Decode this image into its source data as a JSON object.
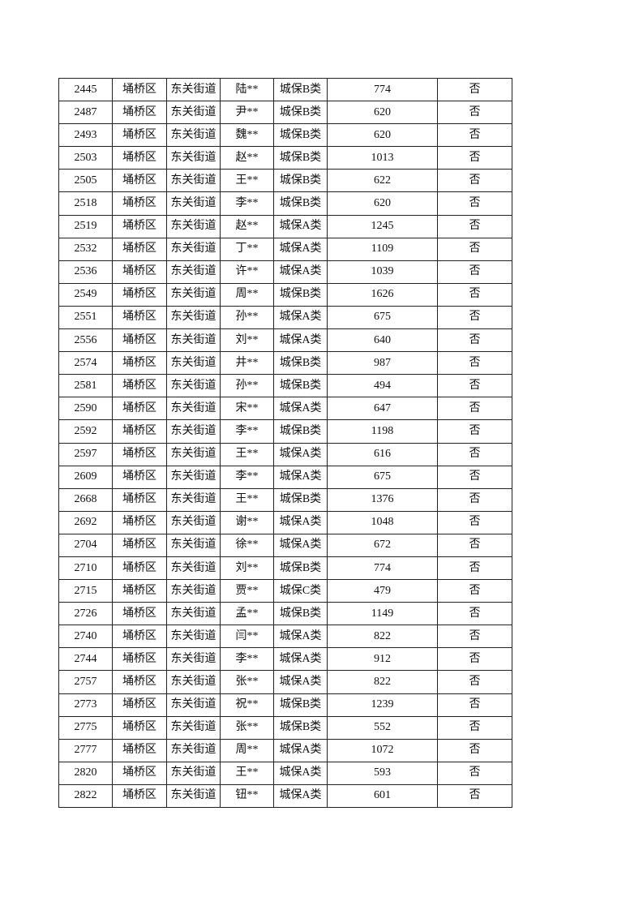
{
  "table": {
    "rows": [
      [
        "2445",
        "埇桥区",
        "东关街道",
        "陆**",
        "城保B类",
        "774",
        "否"
      ],
      [
        "2487",
        "埇桥区",
        "东关街道",
        "尹**",
        "城保B类",
        "620",
        "否"
      ],
      [
        "2493",
        "埇桥区",
        "东关街道",
        "魏**",
        "城保B类",
        "620",
        "否"
      ],
      [
        "2503",
        "埇桥区",
        "东关街道",
        "赵**",
        "城保B类",
        "1013",
        "否"
      ],
      [
        "2505",
        "埇桥区",
        "东关街道",
        "王**",
        "城保B类",
        "622",
        "否"
      ],
      [
        "2518",
        "埇桥区",
        "东关街道",
        "李**",
        "城保B类",
        "620",
        "否"
      ],
      [
        "2519",
        "埇桥区",
        "东关街道",
        "赵**",
        "城保A类",
        "1245",
        "否"
      ],
      [
        "2532",
        "埇桥区",
        "东关街道",
        "丁**",
        "城保A类",
        "1109",
        "否"
      ],
      [
        "2536",
        "埇桥区",
        "东关街道",
        "许**",
        "城保A类",
        "1039",
        "否"
      ],
      [
        "2549",
        "埇桥区",
        "东关街道",
        "周**",
        "城保B类",
        "1626",
        "否"
      ],
      [
        "2551",
        "埇桥区",
        "东关街道",
        "孙**",
        "城保A类",
        "675",
        "否"
      ],
      [
        "2556",
        "埇桥区",
        "东关街道",
        "刘**",
        "城保A类",
        "640",
        "否"
      ],
      [
        "2574",
        "埇桥区",
        "东关街道",
        "井**",
        "城保B类",
        "987",
        "否"
      ],
      [
        "2581",
        "埇桥区",
        "东关街道",
        "孙**",
        "城保B类",
        "494",
        "否"
      ],
      [
        "2590",
        "埇桥区",
        "东关街道",
        "宋**",
        "城保A类",
        "647",
        "否"
      ],
      [
        "2592",
        "埇桥区",
        "东关街道",
        "李**",
        "城保B类",
        "1198",
        "否"
      ],
      [
        "2597",
        "埇桥区",
        "东关街道",
        "王**",
        "城保A类",
        "616",
        "否"
      ],
      [
        "2609",
        "埇桥区",
        "东关街道",
        "李**",
        "城保A类",
        "675",
        "否"
      ],
      [
        "2668",
        "埇桥区",
        "东关街道",
        "王**",
        "城保B类",
        "1376",
        "否"
      ],
      [
        "2692",
        "埇桥区",
        "东关街道",
        "谢**",
        "城保A类",
        "1048",
        "否"
      ],
      [
        "2704",
        "埇桥区",
        "东关街道",
        "徐**",
        "城保A类",
        "672",
        "否"
      ],
      [
        "2710",
        "埇桥区",
        "东关街道",
        "刘**",
        "城保B类",
        "774",
        "否"
      ],
      [
        "2715",
        "埇桥区",
        "东关街道",
        "贾**",
        "城保C类",
        "479",
        "否"
      ],
      [
        "2726",
        "埇桥区",
        "东关街道",
        "孟**",
        "城保B类",
        "1149",
        "否"
      ],
      [
        "2740",
        "埇桥区",
        "东关街道",
        "闫**",
        "城保A类",
        "822",
        "否"
      ],
      [
        "2744",
        "埇桥区",
        "东关街道",
        "李**",
        "城保A类",
        "912",
        "否"
      ],
      [
        "2757",
        "埇桥区",
        "东关街道",
        "张**",
        "城保A类",
        "822",
        "否"
      ],
      [
        "2773",
        "埇桥区",
        "东关街道",
        "祝**",
        "城保B类",
        "1239",
        "否"
      ],
      [
        "2775",
        "埇桥区",
        "东关街道",
        "张**",
        "城保B类",
        "552",
        "否"
      ],
      [
        "2777",
        "埇桥区",
        "东关街道",
        "周**",
        "城保A类",
        "1072",
        "否"
      ],
      [
        "2820",
        "埇桥区",
        "东关街道",
        "王**",
        "城保A类",
        "593",
        "否"
      ],
      [
        "2822",
        "埇桥区",
        "东关街道",
        "钮**",
        "城保A类",
        "601",
        "否"
      ]
    ]
  }
}
